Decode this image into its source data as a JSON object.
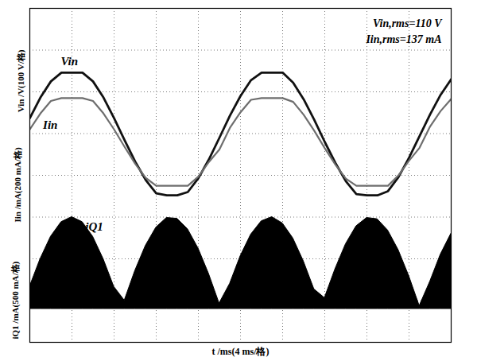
{
  "chart_data": {
    "type": "line",
    "xlabel": "t /ms(4 ms/格)",
    "ylabel": [
      "iQ1 /mA(500 mA/格)",
      "Iin /mA(200 mA/格)",
      "Vin /V(100 V/格)"
    ],
    "annotations": [
      "Vin,rms=110 V",
      "Iin,rms=137 mA"
    ],
    "x": [
      0,
      1,
      2,
      3,
      4,
      5,
      6,
      7,
      8,
      9,
      10,
      11,
      12,
      13,
      14,
      15,
      16,
      17,
      18,
      19,
      20,
      21,
      22,
      23,
      24,
      25,
      26,
      27,
      28,
      29,
      30,
      31,
      32,
      33,
      34,
      35,
      36,
      37,
      38,
      39,
      40
    ],
    "series": [
      {
        "name": "Vin",
        "color": "#111111",
        "type": "line",
        "values": [
          1.37,
          1.86,
          2.25,
          2.46,
          2.46,
          2.46,
          2.25,
          1.86,
          1.37,
          0.84,
          0.33,
          -0.11,
          -0.43,
          -0.48,
          -0.48,
          -0.4,
          -0.07,
          0.38,
          0.9,
          1.43,
          1.9,
          2.28,
          2.46,
          2.46,
          2.46,
          2.22,
          1.82,
          1.33,
          0.8,
          0.3,
          -0.14,
          -0.45,
          -0.48,
          -0.48,
          -0.38,
          -0.04,
          0.42,
          0.94,
          1.46,
          1.93,
          2.3
        ]
      },
      {
        "name": "Iin",
        "color": "#6e6e6e",
        "type": "line",
        "values": [
          1.1,
          1.48,
          1.78,
          1.85,
          1.85,
          1.85,
          1.78,
          1.48,
          1.1,
          0.68,
          0.28,
          -0.06,
          -0.25,
          -0.25,
          -0.25,
          -0.25,
          -0.03,
          0.32,
          0.62,
          1.14,
          1.51,
          1.81,
          1.85,
          1.85,
          1.85,
          1.76,
          1.45,
          1.07,
          0.65,
          0.26,
          -0.08,
          -0.25,
          -0.25,
          -0.25,
          -0.25,
          0.0,
          0.35,
          0.66,
          1.17,
          1.54,
          1.83
        ]
      },
      {
        "name": "iQ1",
        "color": "#000000",
        "type": "area",
        "baseline": -3.2,
        "values": [
          -2.67,
          -2.01,
          -1.47,
          -1.12,
          -1.0,
          -1.12,
          -1.47,
          -2.01,
          -2.67,
          -3.0,
          -2.29,
          -1.69,
          -1.25,
          -1.02,
          -1.04,
          -1.29,
          -1.75,
          -2.36,
          -3.07,
          -2.6,
          -1.94,
          -1.42,
          -1.1,
          -1.0,
          -1.15,
          -1.51,
          -2.06,
          -2.73,
          -2.94,
          -2.25,
          -1.65,
          -1.22,
          -1.02,
          -1.05,
          -1.32,
          -1.79,
          -2.41,
          -3.13,
          -2.55,
          -1.9,
          -1.4
        ]
      }
    ],
    "xlim": [
      0,
      40
    ],
    "xticks": [
      0,
      4,
      8,
      12,
      16,
      20,
      24,
      28,
      32,
      36,
      40
    ],
    "ylim": [
      -4,
      4
    ],
    "yticks": [
      -4,
      -3,
      -2,
      -1,
      0,
      1,
      2,
      3,
      4
    ],
    "grid": true,
    "tick_labels": false
  }
}
